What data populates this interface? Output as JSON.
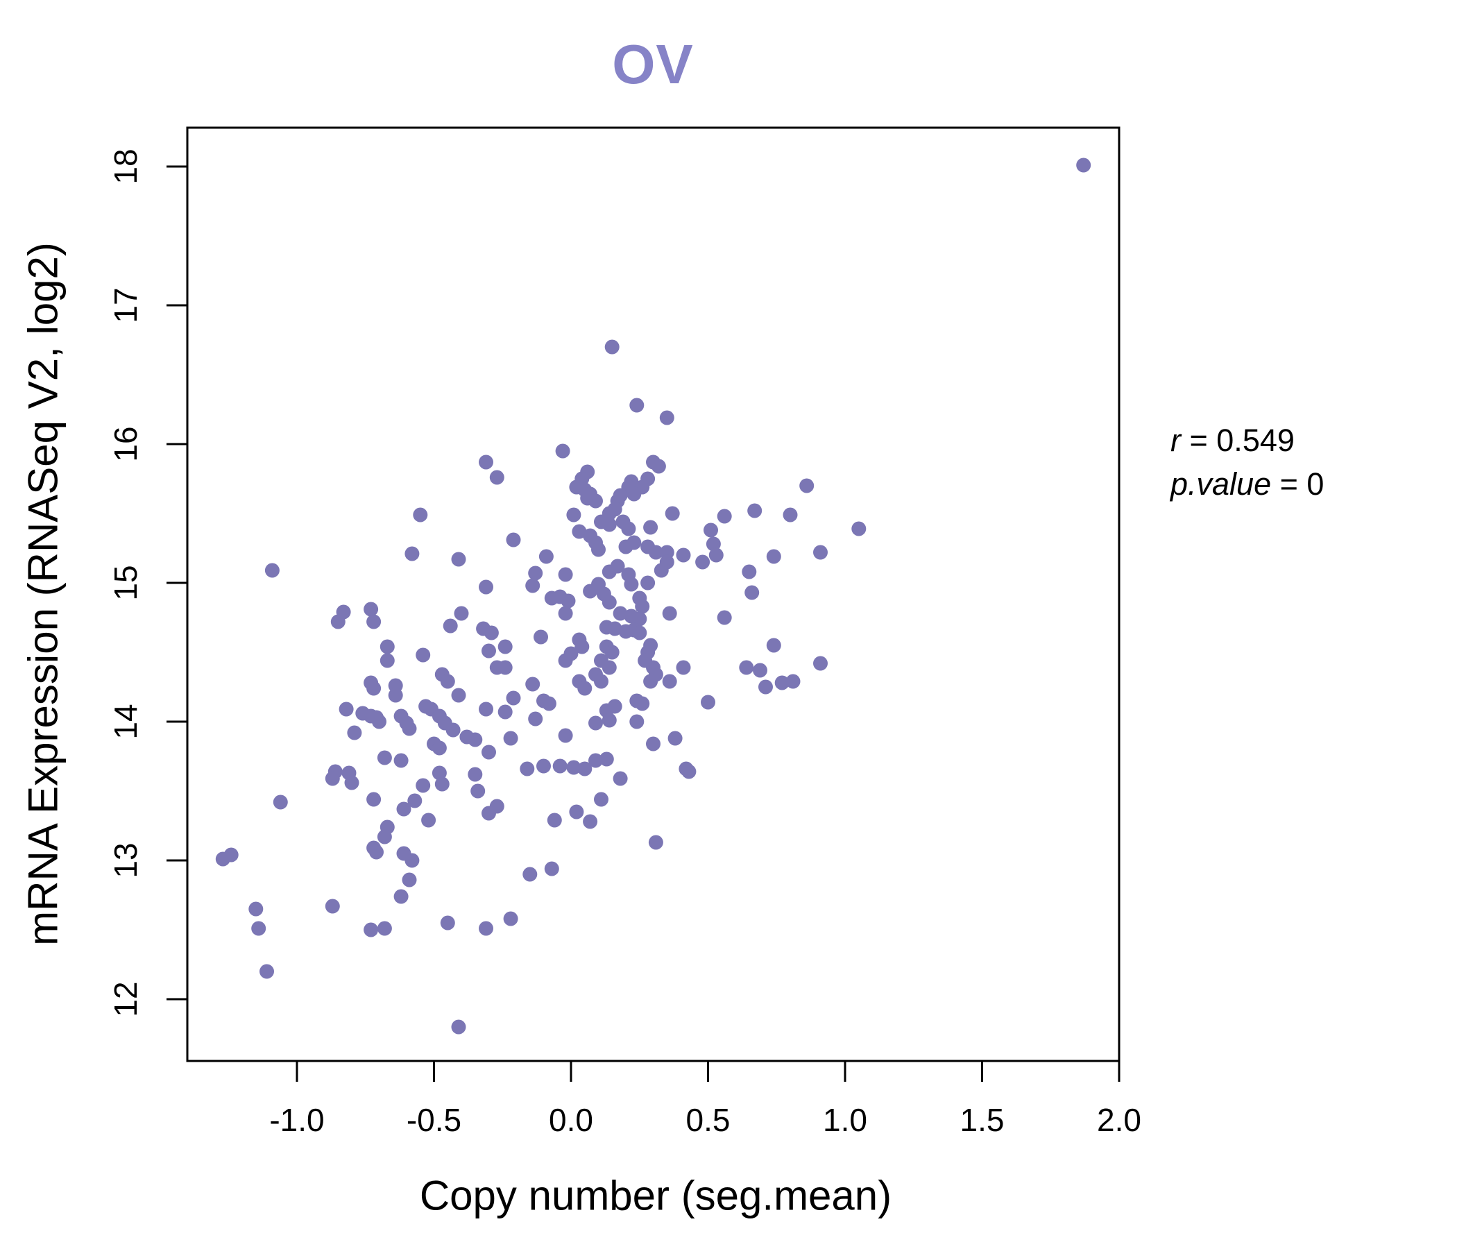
{
  "page": {
    "background": "#ffffff"
  },
  "annotation": {
    "r_label": "r",
    "r_eq": " = 0.549",
    "p_label": "p.value",
    "p_eq": " = 0"
  },
  "chart_data": {
    "type": "scatter",
    "title": "OV",
    "title_color": "#8683c7",
    "xlabel": "Copy number (seg.mean)",
    "ylabel": "mRNA Expression (RNASeq V2, log2)",
    "xlim": [
      -1.4,
      2.0
    ],
    "ylim": [
      11.555,
      18.28
    ],
    "x_ticks": [
      -1.0,
      -0.5,
      0.0,
      0.5,
      1.0,
      1.5,
      2.0
    ],
    "x_tick_labels": [
      "-1.0",
      "-0.5",
      "0.0",
      "0.5",
      "1.0",
      "1.5",
      "2.0"
    ],
    "y_ticks": [
      12,
      13,
      14,
      15,
      16,
      17,
      18
    ],
    "y_tick_labels": [
      "12",
      "13",
      "14",
      "15",
      "16",
      "17",
      "18"
    ],
    "grid": false,
    "legend": "none",
    "point_color": "#7b76b4",
    "point_radius": 10.5,
    "box_color": "#000000",
    "r_value": 0.549,
    "p_value": 0,
    "points": [
      [
        1.87,
        18.01
      ],
      [
        0.15,
        16.7
      ],
      [
        0.24,
        16.28
      ],
      [
        0.35,
        16.19
      ],
      [
        -0.03,
        15.95
      ],
      [
        -0.31,
        15.87
      ],
      [
        -0.27,
        15.76
      ],
      [
        0.06,
        15.8
      ],
      [
        0.3,
        15.87
      ],
      [
        0.32,
        15.84
      ],
      [
        0.28,
        15.75
      ],
      [
        0.22,
        15.73
      ],
      [
        0.23,
        15.65
      ],
      [
        0.04,
        15.75
      ],
      [
        0.05,
        15.67
      ],
      [
        0.06,
        15.61
      ],
      [
        0.09,
        15.59
      ],
      [
        0.17,
        15.59
      ],
      [
        0.02,
        15.69
      ],
      [
        0.07,
        15.64
      ],
      [
        0.21,
        15.69
      ],
      [
        0.26,
        15.69
      ],
      [
        0.18,
        15.63
      ],
      [
        0.23,
        15.64
      ],
      [
        0.86,
        15.7
      ],
      [
        0.01,
        15.49
      ],
      [
        0.14,
        15.5
      ],
      [
        0.16,
        15.53
      ],
      [
        0.11,
        15.44
      ],
      [
        0.14,
        15.42
      ],
      [
        0.19,
        15.44
      ],
      [
        0.21,
        15.39
      ],
      [
        0.37,
        15.5
      ],
      [
        0.56,
        15.48
      ],
      [
        0.67,
        15.52
      ],
      [
        0.8,
        15.49
      ],
      [
        0.29,
        15.4
      ],
      [
        0.51,
        15.38
      ],
      [
        -0.21,
        15.31
      ],
      [
        0.03,
        15.37
      ],
      [
        0.07,
        15.34
      ],
      [
        0.09,
        15.29
      ],
      [
        0.1,
        15.24
      ],
      [
        -0.09,
        15.19
      ],
      [
        0.2,
        15.26
      ],
      [
        0.23,
        15.29
      ],
      [
        0.28,
        15.26
      ],
      [
        0.31,
        15.22
      ],
      [
        0.35,
        15.22
      ],
      [
        0.41,
        15.2
      ],
      [
        0.52,
        15.28
      ],
      [
        0.53,
        15.2
      ],
      [
        0.48,
        15.15
      ],
      [
        0.74,
        15.19
      ],
      [
        -0.13,
        15.07
      ],
      [
        -0.02,
        15.06
      ],
      [
        -0.14,
        14.98
      ],
      [
        0.14,
        15.08
      ],
      [
        0.17,
        15.12
      ],
      [
        0.21,
        15.06
      ],
      [
        0.1,
        14.99
      ],
      [
        0.07,
        14.94
      ],
      [
        0.22,
        14.99
      ],
      [
        0.28,
        15.0
      ],
      [
        0.33,
        15.09
      ],
      [
        0.35,
        15.15
      ],
      [
        0.65,
        15.08
      ],
      [
        0.66,
        14.93
      ],
      [
        -0.07,
        14.89
      ],
      [
        -0.04,
        14.9
      ],
      [
        -0.01,
        14.87
      ],
      [
        0.12,
        14.92
      ],
      [
        0.14,
        14.86
      ],
      [
        0.25,
        14.89
      ],
      [
        0.26,
        14.83
      ],
      [
        -0.02,
        14.78
      ],
      [
        0.18,
        14.78
      ],
      [
        0.22,
        14.76
      ],
      [
        0.25,
        14.74
      ],
      [
        0.36,
        14.78
      ],
      [
        0.56,
        14.75
      ],
      [
        0.74,
        14.55
      ],
      [
        0.13,
        14.68
      ],
      [
        0.16,
        14.67
      ],
      [
        0.2,
        14.65
      ],
      [
        0.23,
        14.66
      ],
      [
        0.25,
        14.64
      ],
      [
        -0.11,
        14.61
      ],
      [
        -0.24,
        14.54
      ],
      [
        0.03,
        14.59
      ],
      [
        0.04,
        14.54
      ],
      [
        0.0,
        14.49
      ],
      [
        0.13,
        14.54
      ],
      [
        0.15,
        14.5
      ],
      [
        0.29,
        14.55
      ],
      [
        0.28,
        14.5
      ],
      [
        -0.24,
        14.39
      ],
      [
        -0.02,
        14.44
      ],
      [
        0.11,
        14.44
      ],
      [
        0.14,
        14.39
      ],
      [
        0.09,
        14.34
      ],
      [
        0.11,
        14.29
      ],
      [
        0.03,
        14.29
      ],
      [
        0.05,
        14.24
      ],
      [
        0.27,
        14.44
      ],
      [
        0.3,
        14.39
      ],
      [
        0.31,
        14.34
      ],
      [
        0.29,
        14.29
      ],
      [
        0.41,
        14.39
      ],
      [
        0.36,
        14.29
      ],
      [
        0.64,
        14.39
      ],
      [
        0.69,
        14.37
      ],
      [
        0.71,
        14.25
      ],
      [
        0.77,
        14.28
      ],
      [
        -0.14,
        14.27
      ],
      [
        -0.21,
        14.17
      ],
      [
        -0.1,
        14.15
      ],
      [
        -0.08,
        14.13
      ],
      [
        -0.24,
        14.07
      ],
      [
        -0.13,
        14.02
      ],
      [
        0.24,
        14.15
      ],
      [
        0.26,
        14.13
      ],
      [
        0.16,
        14.11
      ],
      [
        0.13,
        14.08
      ],
      [
        0.5,
        14.14
      ],
      [
        -0.22,
        13.88
      ],
      [
        -0.02,
        13.9
      ],
      [
        0.09,
        13.99
      ],
      [
        0.14,
        14.01
      ],
      [
        0.24,
        14.0
      ],
      [
        0.3,
        13.84
      ],
      [
        0.38,
        13.88
      ],
      [
        -0.16,
        13.66
      ],
      [
        -0.1,
        13.68
      ],
      [
        -0.04,
        13.68
      ],
      [
        0.01,
        13.67
      ],
      [
        0.09,
        13.72
      ],
      [
        0.13,
        13.73
      ],
      [
        0.05,
        13.66
      ],
      [
        0.18,
        13.59
      ],
      [
        0.42,
        13.66
      ],
      [
        1.05,
        15.39
      ],
      [
        0.91,
        15.22
      ],
      [
        0.91,
        14.42
      ],
      [
        0.81,
        14.29
      ],
      [
        -0.55,
        15.49
      ],
      [
        -0.58,
        15.21
      ],
      [
        -0.41,
        15.17
      ],
      [
        -1.09,
        15.09
      ],
      [
        -0.31,
        14.97
      ],
      [
        -0.83,
        14.79
      ],
      [
        -0.85,
        14.72
      ],
      [
        -0.73,
        14.81
      ],
      [
        -0.72,
        14.72
      ],
      [
        -0.4,
        14.78
      ],
      [
        -0.44,
        14.69
      ],
      [
        -0.32,
        14.67
      ],
      [
        -0.29,
        14.64
      ],
      [
        -0.67,
        14.54
      ],
      [
        -0.67,
        14.44
      ],
      [
        -0.54,
        14.48
      ],
      [
        -0.3,
        14.51
      ],
      [
        -0.47,
        14.34
      ],
      [
        -0.45,
        14.29
      ],
      [
        -0.27,
        14.39
      ],
      [
        -0.73,
        14.28
      ],
      [
        -0.72,
        14.24
      ],
      [
        -0.64,
        14.26
      ],
      [
        -0.64,
        14.19
      ],
      [
        -0.82,
        14.09
      ],
      [
        -0.76,
        14.06
      ],
      [
        -0.73,
        14.04
      ],
      [
        -0.71,
        14.03
      ],
      [
        -0.7,
        14.0
      ],
      [
        -0.62,
        14.04
      ],
      [
        -0.6,
        13.99
      ],
      [
        -0.59,
        13.95
      ],
      [
        -0.53,
        14.11
      ],
      [
        -0.51,
        14.09
      ],
      [
        -0.48,
        14.04
      ],
      [
        -0.46,
        13.99
      ],
      [
        -0.43,
        13.94
      ],
      [
        -0.41,
        14.19
      ],
      [
        -0.31,
        14.09
      ],
      [
        -0.79,
        13.92
      ],
      [
        -0.5,
        13.84
      ],
      [
        -0.48,
        13.81
      ],
      [
        -0.38,
        13.89
      ],
      [
        -0.35,
        13.87
      ],
      [
        -0.3,
        13.78
      ],
      [
        -0.68,
        13.74
      ],
      [
        -0.62,
        13.72
      ],
      [
        -0.35,
        13.62
      ],
      [
        -0.86,
        13.64
      ],
      [
        -0.87,
        13.59
      ],
      [
        -0.81,
        13.63
      ],
      [
        -0.8,
        13.56
      ],
      [
        -1.06,
        13.42
      ],
      [
        -0.72,
        13.44
      ],
      [
        -0.54,
        13.54
      ],
      [
        -0.61,
        13.37
      ],
      [
        -0.57,
        13.43
      ],
      [
        -0.48,
        13.63
      ],
      [
        -0.47,
        13.55
      ],
      [
        -0.34,
        13.5
      ],
      [
        -0.3,
        13.34
      ],
      [
        -0.27,
        13.39
      ],
      [
        -0.52,
        13.29
      ],
      [
        -0.67,
        13.24
      ],
      [
        -0.68,
        13.17
      ],
      [
        -0.72,
        13.09
      ],
      [
        -0.71,
        13.06
      ],
      [
        -0.61,
        13.05
      ],
      [
        -0.58,
        13.0
      ],
      [
        -0.59,
        12.86
      ],
      [
        -0.62,
        12.74
      ],
      [
        -1.27,
        13.01
      ],
      [
        -1.24,
        13.04
      ],
      [
        -1.15,
        12.65
      ],
      [
        -1.14,
        12.51
      ],
      [
        -0.87,
        12.67
      ],
      [
        -0.45,
        12.55
      ],
      [
        -0.31,
        12.51
      ],
      [
        -0.73,
        12.5
      ],
      [
        -0.68,
        12.51
      ],
      [
        -1.11,
        12.2
      ],
      [
        -0.41,
        11.8
      ],
      [
        0.43,
        13.64
      ],
      [
        0.11,
        13.44
      ],
      [
        -0.06,
        13.29
      ],
      [
        0.02,
        13.35
      ],
      [
        0.07,
        13.28
      ],
      [
        0.31,
        13.13
      ],
      [
        -0.15,
        12.9
      ],
      [
        -0.07,
        12.94
      ],
      [
        -0.22,
        12.58
      ]
    ]
  }
}
